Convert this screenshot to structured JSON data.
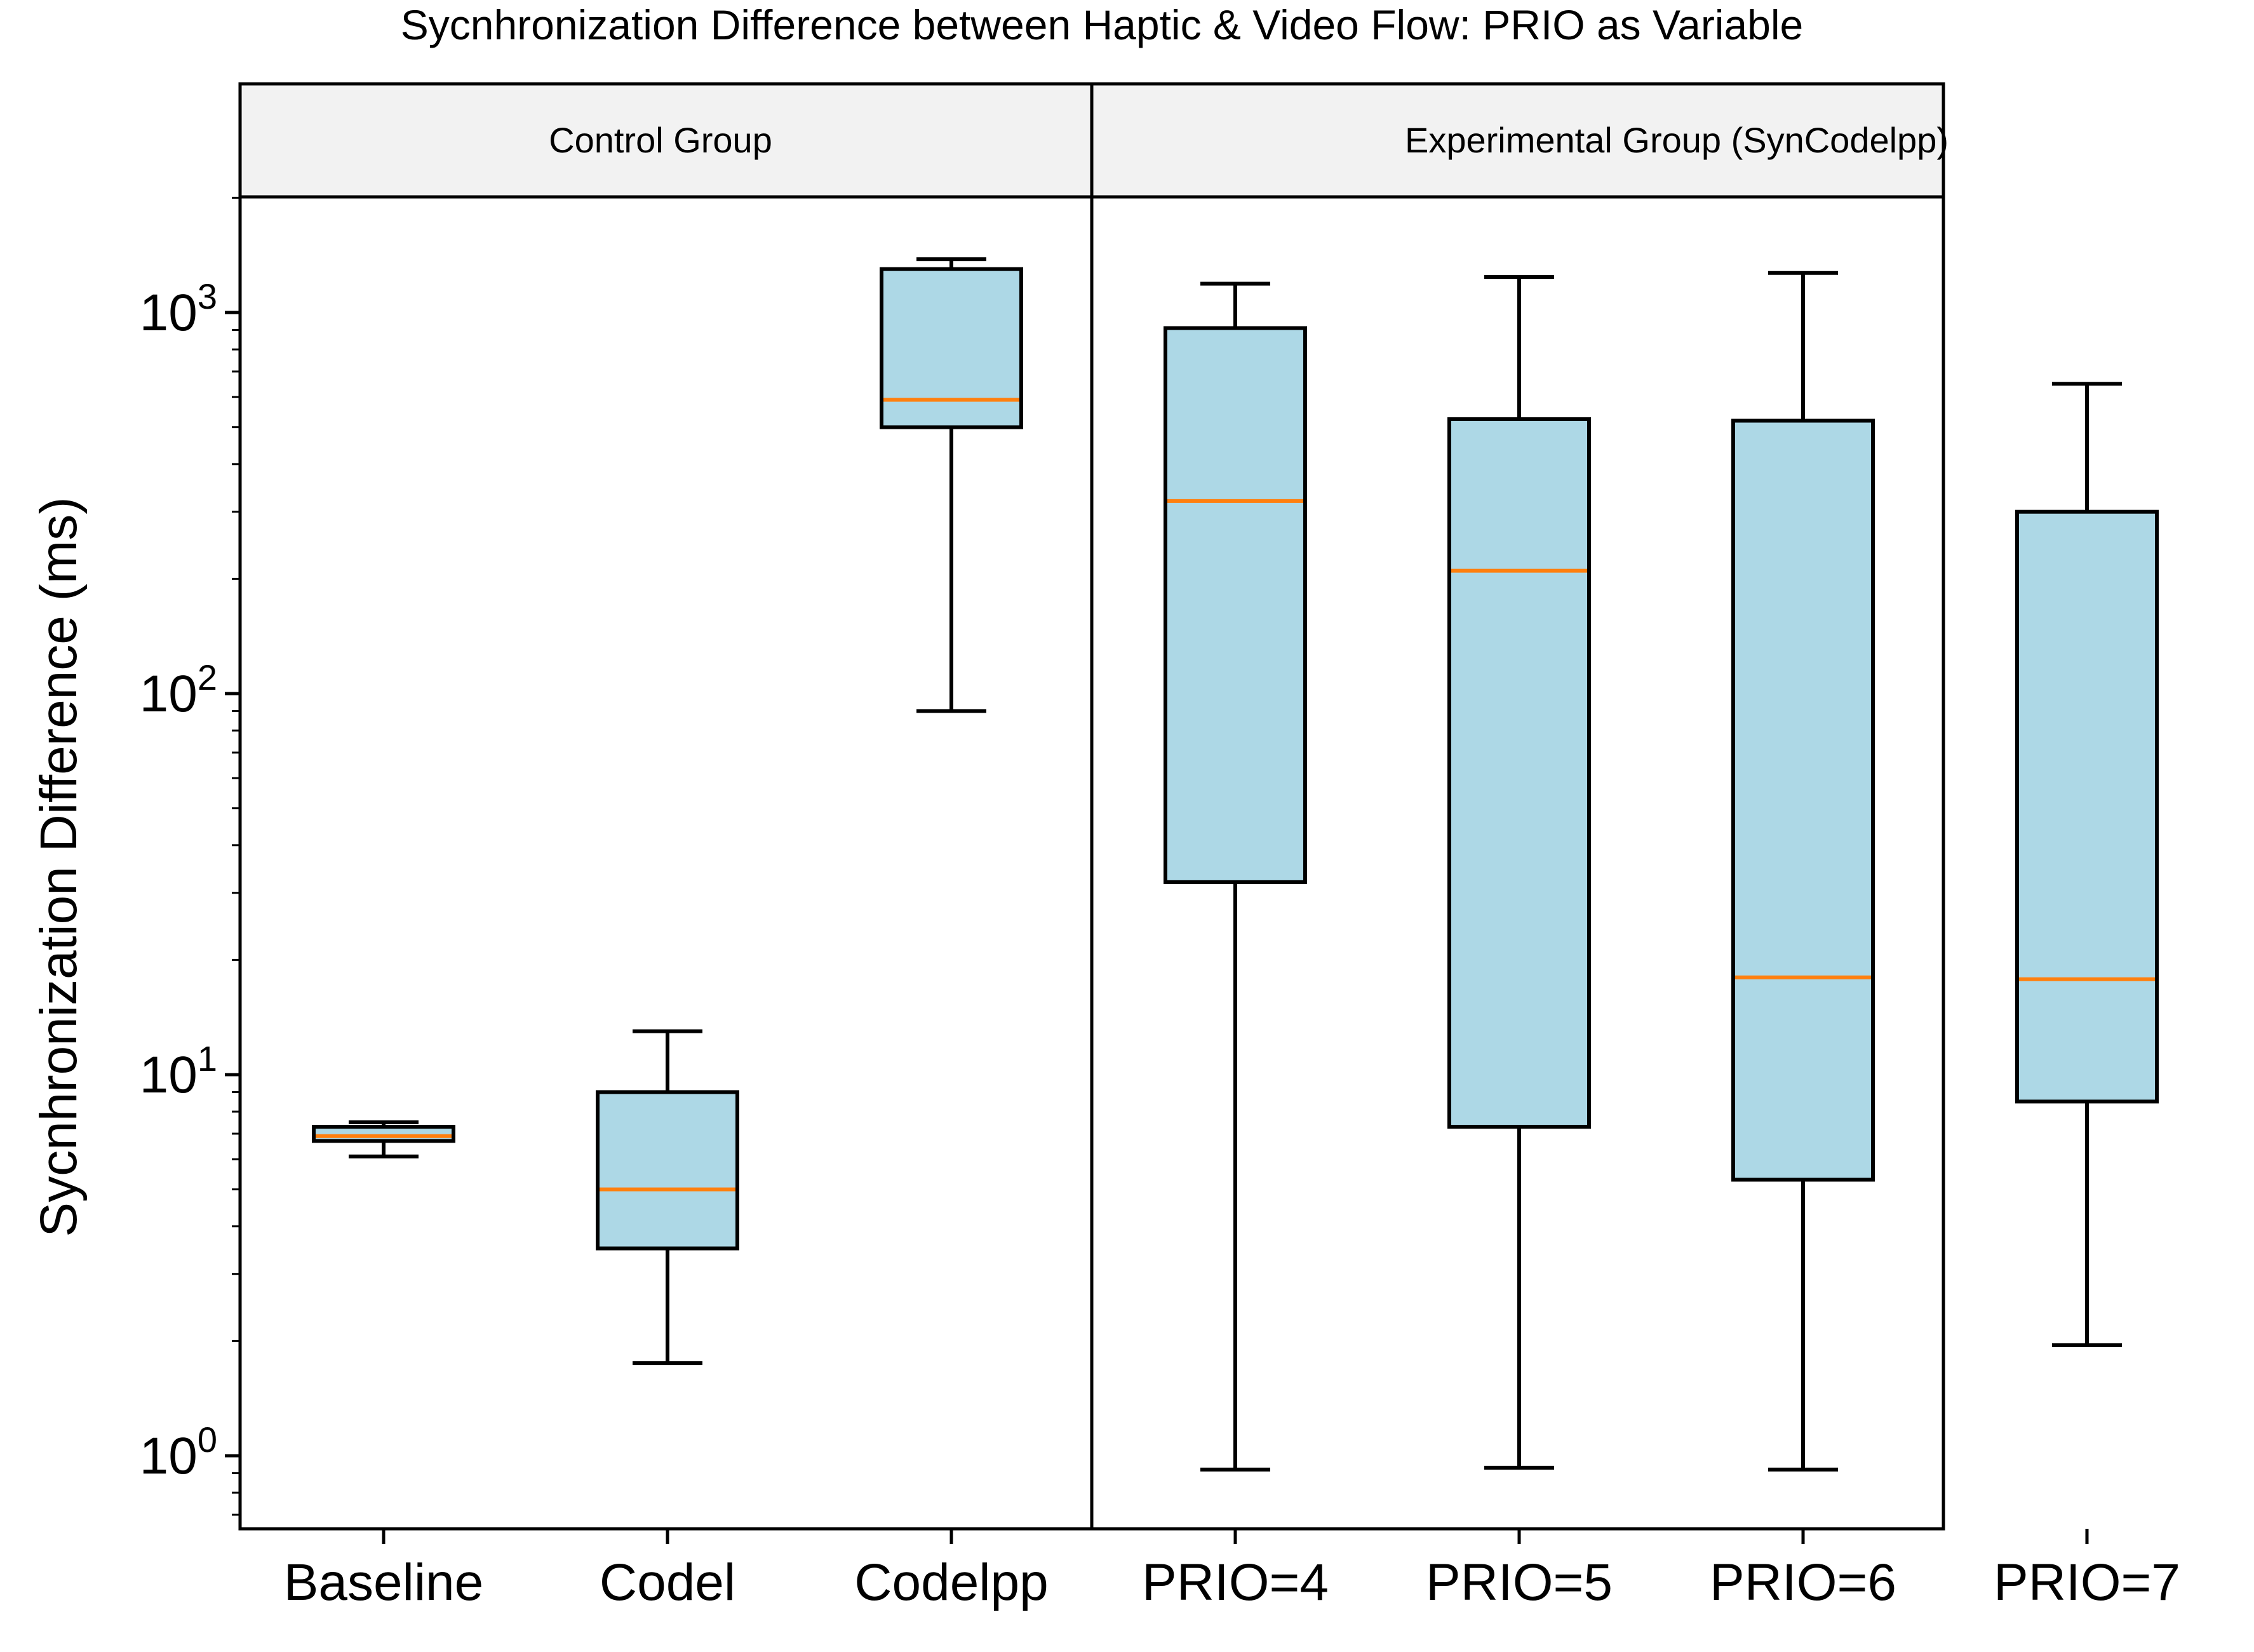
{
  "chart_data": {
    "type": "boxplot",
    "title": "Sycnhronization Difference between Haptic & Video Flow: PRIO as Variable",
    "xlabel": "",
    "ylabel": "Sycnhronization Difference (ms)",
    "yscale": "log",
    "ylim": [
      0.7,
      2000
    ],
    "yticks": [
      1,
      10,
      100,
      1000
    ],
    "ytick_labels": [
      {
        "base": "10",
        "exp": "0"
      },
      {
        "base": "10",
        "exp": "1"
      },
      {
        "base": "10",
        "exp": "2"
      },
      {
        "base": "10",
        "exp": "3"
      }
    ],
    "categories": [
      "Baseline",
      "Codel",
      "Codelpp",
      "PRIO=4",
      "PRIO=5",
      "PRIO=6",
      "PRIO=7"
    ],
    "panels": [
      {
        "label": "Control Group",
        "categories": [
          "Baseline",
          "Codel",
          "Codelpp"
        ]
      },
      {
        "label": "Experimental Group (SynCodelpp)",
        "categories": [
          "PRIO=4",
          "PRIO=5",
          "PRIO=6",
          "PRIO=7"
        ]
      }
    ],
    "boxes": [
      {
        "category": "Baseline",
        "whisker_low": 6.1,
        "q1": 6.7,
        "median": 6.9,
        "q3": 7.3,
        "whisker_high": 7.5
      },
      {
        "category": "Codel",
        "whisker_low": 1.75,
        "q1": 3.5,
        "median": 5.0,
        "q3": 9.0,
        "whisker_high": 13.0
      },
      {
        "category": "Codelpp",
        "whisker_low": 90,
        "q1": 500,
        "median": 590,
        "q3": 1300,
        "whisker_high": 1380
      },
      {
        "category": "PRIO=4",
        "whisker_low": 0.92,
        "q1": 32,
        "median": 320,
        "q3": 910,
        "whisker_high": 1190
      },
      {
        "category": "PRIO=5",
        "whisker_low": 0.93,
        "q1": 7.3,
        "median": 210,
        "q3": 525,
        "whisker_high": 1240
      },
      {
        "category": "PRIO=6",
        "whisker_low": 0.92,
        "q1": 5.3,
        "median": 18,
        "q3": 520,
        "whisker_high": 1270
      },
      {
        "category": "PRIO=7",
        "whisker_low": 1.95,
        "q1": 8.5,
        "median": 17.8,
        "q3": 300,
        "whisker_high": 650
      }
    ],
    "colors": {
      "box_fill": "#add8e6",
      "median": "#ff7f0e",
      "edge": "#000000",
      "header_fill": "#f2f2f2"
    },
    "grid": false
  }
}
